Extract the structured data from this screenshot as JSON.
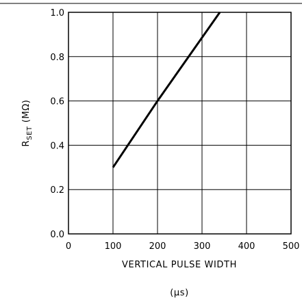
{
  "chart_data": {
    "type": "line",
    "title": "",
    "xlabel": "VERTICAL PULSE WIDTH",
    "xunit": "(μs)",
    "ylabel_main": "R",
    "ylabel_sub": "SET",
    "ylabel_unit": "(MΩ)",
    "xlim": [
      0,
      500
    ],
    "ylim": [
      0.0,
      1.0
    ],
    "x_ticks": [
      "0",
      "100",
      "200",
      "300",
      "400",
      "500"
    ],
    "y_ticks": [
      "0.0",
      "0.2",
      "0.4",
      "0.6",
      "0.8",
      "1.0"
    ],
    "grid": true,
    "series": [
      {
        "x": [
          100,
          200,
          340
        ],
        "y": [
          0.3,
          0.6,
          1.0
        ]
      }
    ]
  }
}
